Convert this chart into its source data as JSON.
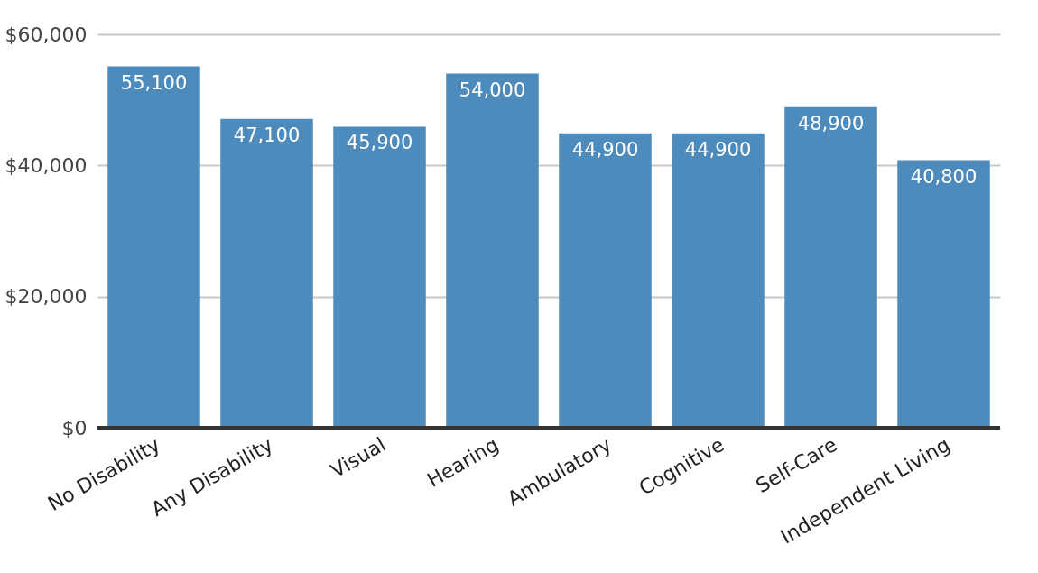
{
  "chart_data": {
    "type": "bar",
    "categories": [
      "No Disability",
      "Any Disability",
      "Visual",
      "Hearing",
      "Ambulatory",
      "Cognitive",
      "Self-Care",
      "Independent Living"
    ],
    "values": [
      55100,
      47100,
      45900,
      54000,
      44900,
      44900,
      48900,
      40800
    ],
    "color": "#4d8bbd",
    "ylim": [
      0,
      60000
    ],
    "yticks": [
      {
        "value": 0,
        "label": "$0"
      },
      {
        "value": 20000,
        "label": "$20,000"
      },
      {
        "value": 40000,
        "label": "$40,000"
      },
      {
        "value": 60000,
        "label": "$60,000"
      }
    ],
    "value_labels": [
      "55,100",
      "47,100",
      "45,900",
      "54,000",
      "44,900",
      "44,900",
      "48,900",
      "40,800"
    ],
    "grid": "y"
  }
}
